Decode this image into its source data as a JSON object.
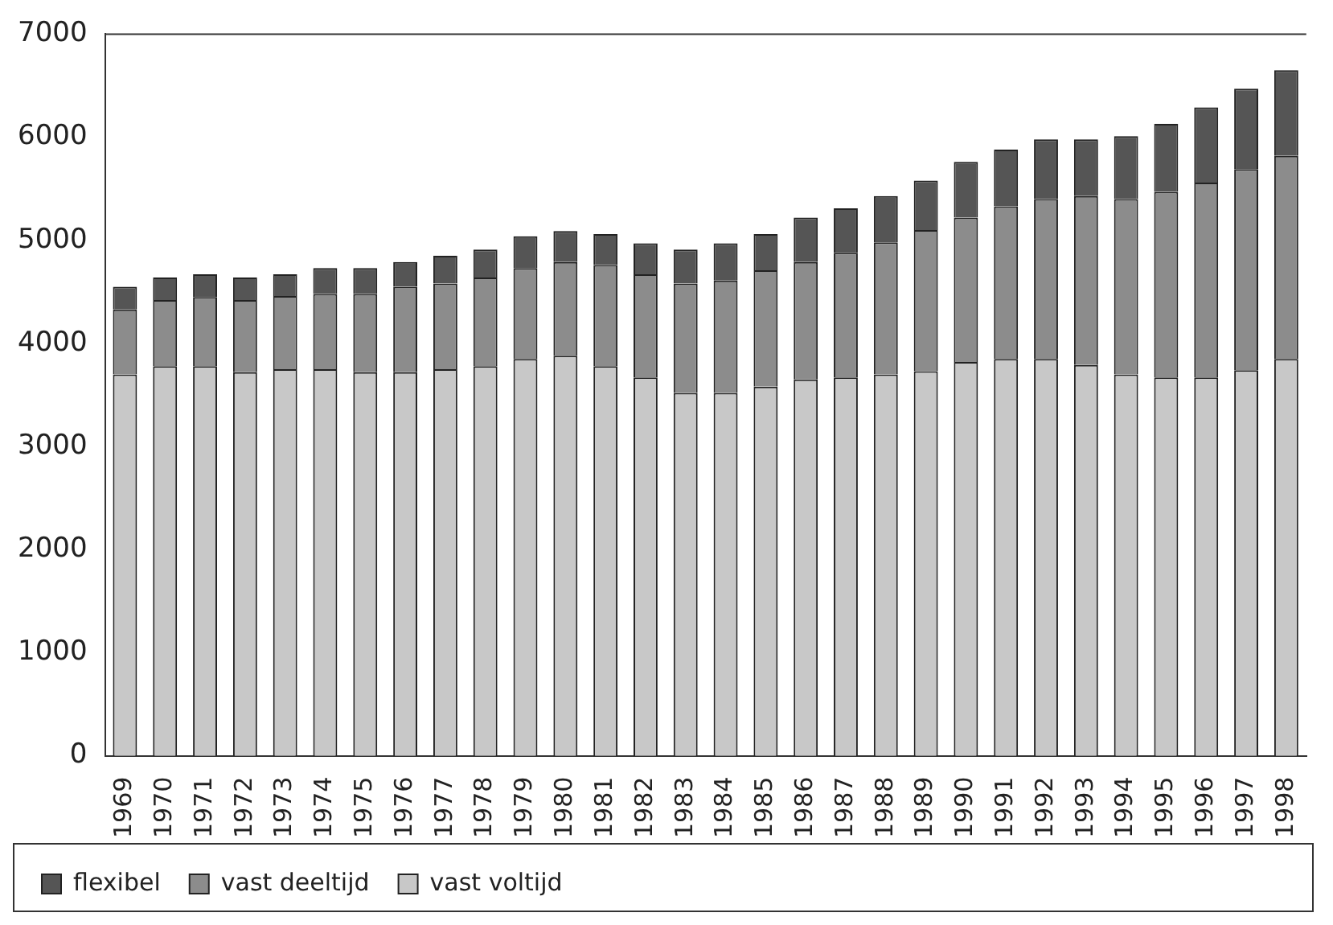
{
  "chart_data": {
    "type": "bar",
    "stacked": true,
    "categories": [
      "1969",
      "1970",
      "1971",
      "1972",
      "1973",
      "1974",
      "1975",
      "1976",
      "1977",
      "1978",
      "1979",
      "1980",
      "1981",
      "1982",
      "1983",
      "1984",
      "1985",
      "1986",
      "1987",
      "1988",
      "1989",
      "1990",
      "1991",
      "1992",
      "1993",
      "1994",
      "1995",
      "1996",
      "1997",
      "1998"
    ],
    "series": [
      {
        "name": "vast voltijd",
        "color": "#c8c8c8",
        "values": [
          3700,
          3780,
          3780,
          3720,
          3750,
          3750,
          3720,
          3720,
          3750,
          3780,
          3850,
          3880,
          3780,
          3670,
          3520,
          3520,
          3580,
          3650,
          3670,
          3700,
          3730,
          3820,
          3850,
          3850,
          3790,
          3700,
          3670,
          3670,
          3740,
          3850
        ]
      },
      {
        "name": "vast deeltijd",
        "color": "#8c8c8c",
        "values": [
          630,
          640,
          670,
          700,
          710,
          730,
          760,
          830,
          830,
          860,
          880,
          910,
          980,
          1000,
          1060,
          1090,
          1130,
          1140,
          1210,
          1280,
          1370,
          1400,
          1480,
          1550,
          1640,
          1700,
          1800,
          1890,
          1950,
          1970
        ]
      },
      {
        "name": "flexibel",
        "color": "#555555",
        "values": [
          220,
          220,
          220,
          220,
          210,
          250,
          250,
          240,
          270,
          270,
          310,
          300,
          300,
          300,
          330,
          360,
          350,
          430,
          430,
          450,
          480,
          540,
          550,
          580,
          550,
          610,
          660,
          730,
          780,
          830
        ]
      }
    ],
    "ylim": [
      0,
      7000
    ],
    "yticks": [
      0,
      1000,
      2000,
      3000,
      4000,
      5000,
      6000,
      7000
    ],
    "grid": false,
    "legend": "bottom left"
  }
}
